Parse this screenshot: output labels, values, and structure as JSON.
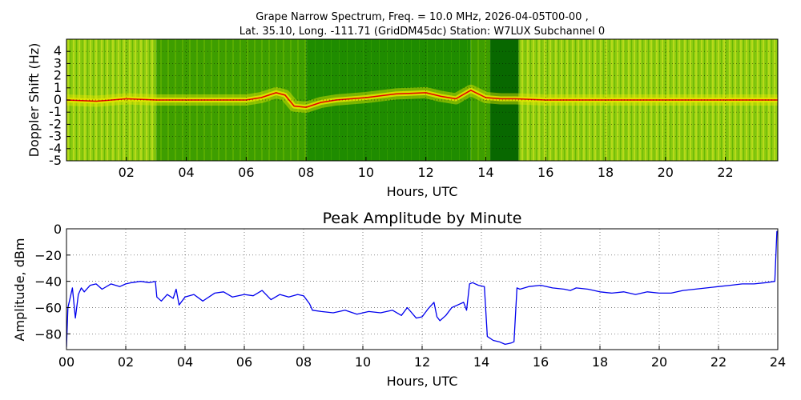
{
  "chart_data": [
    {
      "type": "heatmap",
      "title_line1": "Grape Narrow Spectrum, Freq. = 10.0 MHz, 2026-04-05T00-00 ,",
      "title_line2": "Lat.  35.10, Long. -111.71 (GridDM45dc) Station: W7LUX Subchannel 0",
      "xlabel": "Hours, UTC",
      "ylabel": "Doppler Shift (Hz)",
      "xlim": [
        0,
        23.75
      ],
      "ylim": [
        -5,
        5
      ],
      "xticks": [
        "02",
        "04",
        "06",
        "08",
        "10",
        "12",
        "14",
        "16",
        "18",
        "20",
        "22"
      ],
      "xtick_values": [
        2,
        4,
        6,
        8,
        10,
        12,
        14,
        16,
        18,
        20,
        22
      ],
      "yticks": [
        "4",
        "3",
        "2",
        "1",
        "0",
        "-1",
        "-2",
        "-3",
        "-4",
        "-5"
      ],
      "ytick_values": [
        4,
        3,
        2,
        1,
        0,
        -1,
        -2,
        -3,
        -4,
        -5
      ],
      "grid": true,
      "colors": {
        "background_green": "#1a8a00",
        "mid_green": "#5bb800",
        "yellow": "#e6e600",
        "red": "#e60000",
        "dark_green": "#086800"
      },
      "regions": [
        {
          "x0": 0.0,
          "x1": 3.0,
          "level": "bright"
        },
        {
          "x0": 3.0,
          "x1": 8.0,
          "level": "medium"
        },
        {
          "x0": 8.0,
          "x1": 13.5,
          "level": "dark"
        },
        {
          "x0": 13.5,
          "x1": 14.15,
          "level": "medium"
        },
        {
          "x0": 14.15,
          "x1": 15.1,
          "level": "very-dark"
        },
        {
          "x0": 15.1,
          "x1": 23.75,
          "level": "bright"
        }
      ],
      "doppler_trace": {
        "x": [
          0,
          1,
          2,
          3,
          4,
          5,
          6,
          6.5,
          7,
          7.3,
          7.6,
          8,
          8.5,
          9,
          10,
          11,
          12,
          12.5,
          13,
          13.5,
          14,
          14.5,
          15,
          16,
          18,
          20,
          22,
          23.75
        ],
        "y": [
          0,
          -0.1,
          0.1,
          0,
          0,
          0,
          0,
          0.2,
          0.6,
          0.4,
          -0.5,
          -0.6,
          -0.2,
          0,
          0.2,
          0.5,
          0.6,
          0.3,
          0.1,
          0.8,
          0.2,
          0.1,
          0.1,
          0,
          0,
          0,
          0,
          0
        ]
      }
    },
    {
      "type": "line",
      "title": "Peak Amplitude by Minute",
      "xlabel": "Hours, UTC",
      "ylabel": "Amplitude, dBm",
      "xlim": [
        0,
        24
      ],
      "ylim": [
        -92,
        0
      ],
      "xticks": [
        "00",
        "02",
        "04",
        "06",
        "08",
        "10",
        "12",
        "14",
        "16",
        "18",
        "20",
        "22",
        "24"
      ],
      "xtick_values": [
        0,
        2,
        4,
        6,
        8,
        10,
        12,
        14,
        16,
        18,
        20,
        22,
        24
      ],
      "yticks": [
        "0",
        "−20",
        "−40",
        "−60",
        "−80"
      ],
      "ytick_values": [
        0,
        -20,
        -40,
        -60,
        -80
      ],
      "grid": true,
      "line_color": "#0000ee",
      "series": [
        {
          "x": [
            0.0,
            0.05,
            0.1,
            0.2,
            0.3,
            0.4,
            0.5,
            0.6,
            0.8,
            1.0,
            1.2,
            1.5,
            1.8,
            2.0,
            2.2,
            2.5,
            2.8,
            3.0,
            3.05,
            3.2,
            3.4,
            3.6,
            3.7,
            3.8,
            4.0,
            4.3,
            4.6,
            5.0,
            5.3,
            5.6,
            6.0,
            6.3,
            6.6,
            6.9,
            7.2,
            7.5,
            7.8,
            8.0,
            8.2,
            8.3,
            8.6,
            9.0,
            9.4,
            9.8,
            10.2,
            10.6,
            11.0,
            11.3,
            11.5,
            11.8,
            12.0,
            12.2,
            12.4,
            12.5,
            12.6,
            12.8,
            13.0,
            13.2,
            13.4,
            13.5,
            13.6,
            13.7,
            13.9,
            14.1,
            14.2,
            14.4,
            14.6,
            14.8,
            15.0,
            15.1,
            15.2,
            15.3,
            15.6,
            16.0,
            16.4,
            16.8,
            17.0,
            17.2,
            17.6,
            18.0,
            18.4,
            18.8,
            19.2,
            19.6,
            20.0,
            20.4,
            20.8,
            21.2,
            21.6,
            22.0,
            22.4,
            22.8,
            23.2,
            23.6,
            23.9,
            23.97,
            24.0
          ],
          "y": [
            -90,
            -60,
            -55,
            -45,
            -68,
            -50,
            -45,
            -48,
            -43,
            -42,
            -46,
            -42,
            -44,
            -42,
            -41,
            -40,
            -41,
            -40,
            -52,
            -55,
            -50,
            -53,
            -46,
            -58,
            -52,
            -50,
            -55,
            -49,
            -48,
            -52,
            -50,
            -51,
            -47,
            -54,
            -50,
            -52,
            -50,
            -51,
            -57,
            -62,
            -63,
            -64,
            -62,
            -65,
            -63,
            -64,
            -62,
            -66,
            -60,
            -68,
            -67,
            -61,
            -56,
            -67,
            -70,
            -66,
            -60,
            -58,
            -56,
            -62,
            -42,
            -41,
            -43,
            -44,
            -82,
            -85,
            -86,
            -88,
            -87,
            -86,
            -45,
            -46,
            -44,
            -43,
            -45,
            -46,
            -47,
            -45,
            -46,
            -48,
            -49,
            -48,
            -50,
            -48,
            -49,
            -49,
            -47,
            -46,
            -45,
            -44,
            -43,
            -42,
            -42,
            -41,
            -40,
            -2,
            -2
          ]
        }
      ]
    }
  ]
}
